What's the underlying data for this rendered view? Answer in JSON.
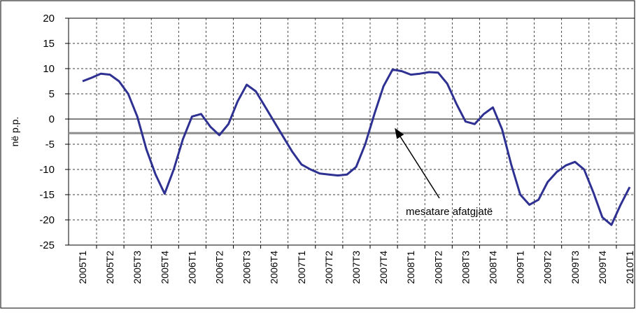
{
  "chart_data": {
    "type": "line",
    "y_label": "në p.p.",
    "categories": [
      "2005T1",
      null,
      null,
      "2005T2",
      null,
      null,
      "2005T3",
      null,
      null,
      "2005T4",
      null,
      null,
      "2006T1",
      null,
      null,
      "2006T2",
      null,
      null,
      "2006T3",
      null,
      null,
      "2006T4",
      null,
      null,
      "2007T1",
      null,
      null,
      "2007T2",
      null,
      null,
      "2007T3",
      null,
      null,
      "2007T4",
      null,
      null,
      "2008T1",
      null,
      null,
      "2008T2",
      null,
      null,
      "2008T3",
      null,
      null,
      "2008T4",
      null,
      null,
      "2009T1",
      null,
      null,
      "2009T2",
      null,
      null,
      "2009T3",
      null,
      null,
      "2009T4",
      null,
      null,
      "2010T1"
    ],
    "values": [
      7.5,
      8.2,
      9.0,
      8.8,
      7.5,
      5,
      0.5,
      -6,
      -11,
      -14.8,
      -10,
      -4,
      0.5,
      1.0,
      -1.5,
      -3.2,
      -1,
      3.5,
      6.8,
      5.5,
      2.5,
      -0.5,
      -3.5,
      -6.5,
      -9,
      -10,
      -10.8,
      -11,
      -11.2,
      -11,
      -9.5,
      -5,
      1,
      6.5,
      9.8,
      9.5,
      8.8,
      9.0,
      9.3,
      9.2,
      7,
      3,
      -0.5,
      -1,
      1,
      2.3,
      -2,
      -9,
      -15,
      -17,
      -16,
      -12.5,
      -10.5,
      -9.2,
      -8.5,
      -10,
      -14.5,
      -19.5,
      -21,
      -17,
      -13.5
    ],
    "color": "#2e3192",
    "average": {
      "value": -2.8,
      "color": "#8c8c8c"
    },
    "annotation": "mesatare afatgjatë",
    "ylim": [
      -25,
      20
    ],
    "yticks": [
      -25,
      -20,
      -15,
      -10,
      -5,
      0,
      5,
      10,
      15,
      20
    ],
    "grid": true
  }
}
